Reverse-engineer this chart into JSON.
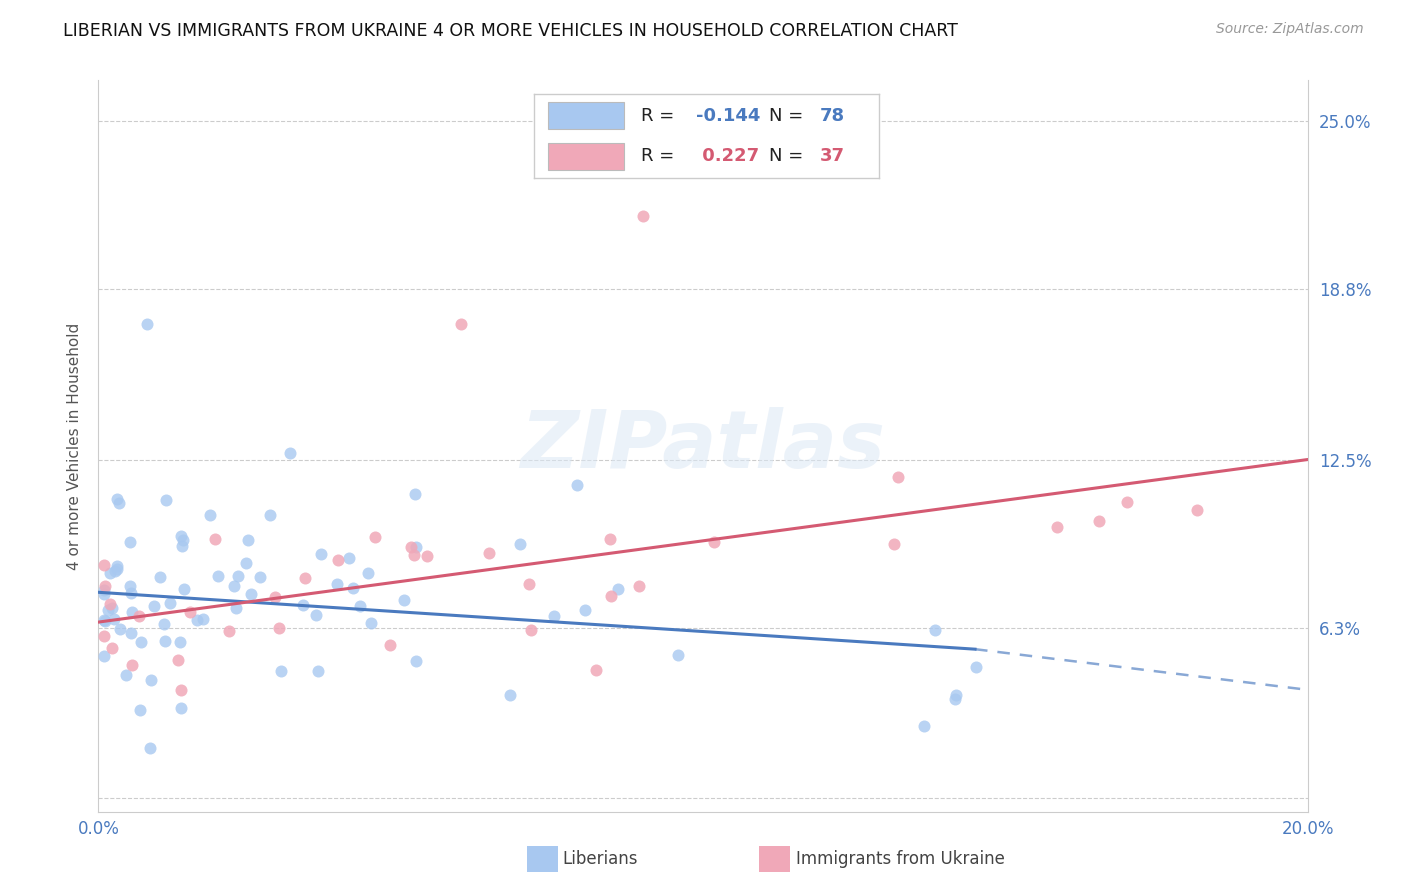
{
  "title": "LIBERIAN VS IMMIGRANTS FROM UKRAINE 4 OR MORE VEHICLES IN HOUSEHOLD CORRELATION CHART",
  "source": "Source: ZipAtlas.com",
  "ylabel": "4 or more Vehicles in Household",
  "xmin": 0.0,
  "xmax": 0.2,
  "ymin": -0.005,
  "ymax": 0.265,
  "ytick_vals": [
    0.0,
    0.063,
    0.125,
    0.188,
    0.25
  ],
  "ytick_labels_right": [
    "",
    "6.3%",
    "12.5%",
    "18.8%",
    "25.0%"
  ],
  "xtick_vals": [
    0.0,
    0.05,
    0.1,
    0.15,
    0.2
  ],
  "xtick_labels": [
    "0.0%",
    "",
    "",
    "",
    "20.0%"
  ],
  "liberian_color": "#a8c8f0",
  "ukraine_color": "#f0a8b8",
  "trend_blue": "#4a7abf",
  "trend_pink": "#d45a72",
  "R_liberian": -0.144,
  "N_liberian": 78,
  "R_ukraine": 0.227,
  "N_ukraine": 37,
  "watermark": "ZIPatlas",
  "liberian_label": "Liberians",
  "ukraine_label": "Immigrants from Ukraine",
  "blue_trend_start_x": 0.0,
  "blue_trend_start_y": 0.076,
  "blue_trend_end_x": 0.145,
  "blue_trend_end_y": 0.055,
  "blue_trend_dash_end_x": 0.2,
  "blue_trend_dash_end_y": 0.04,
  "pink_trend_start_x": 0.0,
  "pink_trend_start_y": 0.065,
  "pink_trend_end_x": 0.2,
  "pink_trend_end_y": 0.125
}
